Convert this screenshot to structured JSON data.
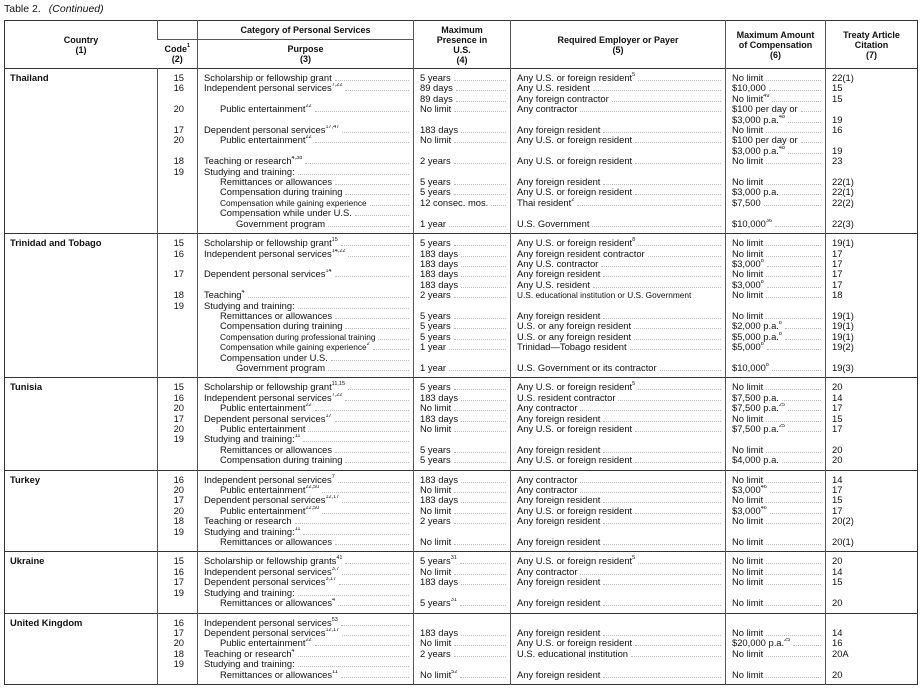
{
  "caption": {
    "label": "Table 2.",
    "note": "(Continued)"
  },
  "header": {
    "country": "Country",
    "country_num": "(1)",
    "category": "Category of Personal Services",
    "code": "Code",
    "code_sup": "1",
    "code_num": "(2)",
    "purpose": "Purpose",
    "purpose_num": "(3)",
    "presence": "Maximum Presence in U.S.",
    "presence_num": "(4)",
    "payer": "Required Employer or Payer",
    "payer_num": "(5)",
    "amount": "Maximum Amount of Compensation",
    "amount_num": "(6)",
    "article": "Treaty Article Citation",
    "article_num": "(7)"
  },
  "sections": [
    {
      "country": "Thailand",
      "lines": [
        {
          "code": "15",
          "purpose": "Scholarship or fellowship grant",
          "level": 0,
          "presence": "5 years",
          "payer": "Any U.S. or foreign resident",
          "payer_sup": "5",
          "amount": "No limit",
          "article": "22(1)"
        },
        {
          "code": "16",
          "purpose": "Independent personal services",
          "purpose_sup": "7,22",
          "level": 0,
          "presence": "89 days",
          "payer": "Any U.S. resident",
          "amount": "$10,000",
          "article": "15"
        },
        {
          "presence": "89 days",
          "payer": "Any foreign contractor",
          "amount": "No limit",
          "amount_sup": "49",
          "article": "15"
        },
        {
          "code": "20",
          "purpose": "Public entertainment",
          "purpose_sup": "22",
          "level": 1,
          "presence": "No limit",
          "payer": "Any contractor",
          "amount": "$100 per day or"
        },
        {
          "amount": "$3,000 p.a.",
          "amount_sup": "48",
          "article": "19"
        },
        {
          "code": "17",
          "purpose": "Dependent personal services",
          "purpose_sup": "17,47",
          "level": 0,
          "presence": "183 days",
          "payer": "Any foreign resident",
          "amount": "No limit",
          "article": "16"
        },
        {
          "code": "20",
          "purpose": "Public entertainment",
          "purpose_sup": "22",
          "level": 1,
          "presence": "No limit",
          "payer": "Any U.S. or foreign resident",
          "amount": "$100 per day or"
        },
        {
          "amount": "$3,000 p.a.",
          "amount_sup": "48",
          "article": "19"
        },
        {
          "code": "18",
          "purpose": "Teaching or research",
          "purpose_sup": "4,38",
          "level": 0,
          "presence": "2 years",
          "payer": "Any U.S. or foreign resident",
          "amount": "No limit",
          "article": "23"
        },
        {
          "code": "19",
          "purpose": "Studying and training:",
          "level": 0
        },
        {
          "purpose": "Remittances or allowances",
          "level": 1,
          "presence": "5 years",
          "payer": "Any foreign resident",
          "amount": "No limit",
          "article": "22(1)"
        },
        {
          "purpose": "Compensation during training",
          "level": 1,
          "presence": "5 years",
          "payer": "Any U.S. or foreign resident",
          "amount": "$3,000 p.a.",
          "article": "22(1)"
        },
        {
          "purpose": "Compensation while gaining experience",
          "level": 1,
          "small": true,
          "presence": "12 consec. mos.",
          "payer": "Thai resident",
          "payer_sup": "2",
          "amount": "$7,500",
          "article": "22(2)"
        },
        {
          "purpose": "Compensation while under U.S.",
          "level": 1
        },
        {
          "purpose": "Government program",
          "level": 2,
          "presence": "1 year",
          "payer": "U.S. Government",
          "amount": "$10,000",
          "amount_sup": "36",
          "article": "22(3)"
        }
      ]
    },
    {
      "country": "Trinidad and Tobago",
      "lines": [
        {
          "code": "15",
          "purpose": "Scholarship or fellowship grant",
          "purpose_sup": "15",
          "level": 0,
          "presence": "5 years",
          "payer": "Any U.S. or foreign resident",
          "payer_sup": "8",
          "amount": "No limit",
          "article": "19(1)"
        },
        {
          "code": "16",
          "purpose": "Independent personal services",
          "purpose_sup": "14,22",
          "level": 0,
          "presence": "183 days",
          "payer": "Any foreign resident contractor",
          "amount": "No limit",
          "article": "17"
        },
        {
          "presence": "183 days",
          "payer": "Any U.S. contractor",
          "amount": "$3,000",
          "amount_sup": "8",
          "article": "17"
        },
        {
          "code": "17",
          "purpose": "Dependent personal services",
          "purpose_sup": "14",
          "level": 0,
          "presence": "183 days",
          "payer": "Any foreign resident",
          "amount": "No limit",
          "article": "17"
        },
        {
          "presence": "183 days",
          "payer": "Any U.S. resident",
          "amount": "$3,000",
          "amount_sup": "8",
          "article": "17"
        },
        {
          "code": "18",
          "purpose": "Teaching",
          "purpose_sup": "4",
          "level": 0,
          "presence": "2 years",
          "payer": "U.S. educational institution or U.S. Government",
          "payer_small": true,
          "amount": "No limit",
          "article": "18"
        },
        {
          "code": "19",
          "purpose": "Studying and training:",
          "level": 0
        },
        {
          "purpose": "Remittances or allowances",
          "level": 1,
          "presence": "5 years",
          "payer": "Any foreign resident",
          "amount": "No limit",
          "article": "19(1)"
        },
        {
          "purpose": "Compensation during training",
          "level": 1,
          "presence": "5 years",
          "payer": "U.S. or any foreign resident",
          "amount": "$2,000 p.a.",
          "amount_sup": "8",
          "article": "19(1)"
        },
        {
          "purpose": "Compensation during professional training",
          "level": 1,
          "small": true,
          "presence": "5 years",
          "payer": "U.S. or any foreign resident",
          "amount": "$5,000 p.a.",
          "amount_sup": "8",
          "article": "19(1)"
        },
        {
          "purpose": "Compensation while gaining experience",
          "purpose_sup": "2",
          "level": 1,
          "small": true,
          "presence": "1 year",
          "payer": "Trinidad—Tobago resident",
          "amount": "$5,000",
          "amount_sup": "8",
          "article": "19(2)"
        },
        {
          "purpose": "Compensation under U.S.",
          "level": 1
        },
        {
          "purpose": "Government program",
          "level": 2,
          "presence": "1 year",
          "payer": "U.S. Government or its contractor",
          "amount": "$10,000",
          "amount_sup": "8",
          "article": "19(3)"
        }
      ]
    },
    {
      "country": "Tunisia",
      "lines": [
        {
          "code": "15",
          "purpose": "Scholarship or fellowship grant",
          "purpose_sup": "11,15",
          "level": 0,
          "presence": "5 years",
          "payer": "Any U.S. or foreign resident",
          "payer_sup": "5",
          "amount": "No limit",
          "article": "20"
        },
        {
          "code": "16",
          "purpose": "Independent personal services",
          "purpose_sup": "7,22",
          "level": 0,
          "presence": "183 days",
          "payer": "U.S. resident contractor",
          "amount": "$7,500 p.a.",
          "article": "14"
        },
        {
          "code": "20",
          "purpose": "Public entertainment",
          "purpose_sup": "22",
          "level": 1,
          "presence": "No limit",
          "payer": "Any contractor",
          "amount": "$7,500 p.a.",
          "amount_sup": "25",
          "article": "17"
        },
        {
          "code": "17",
          "purpose": "Dependent personal services",
          "purpose_sup": "17",
          "level": 0,
          "presence": "183 days",
          "payer": "Any foreign resident",
          "amount": "No limit",
          "article": "15"
        },
        {
          "code": "20",
          "purpose": "Public entertainment",
          "level": 1,
          "presence": "No limit",
          "payer": "Any U.S. or foreign resident",
          "amount": "$7,500 p.a.",
          "amount_sup": "25",
          "article": "17"
        },
        {
          "code": "19",
          "purpose": "Studying and training:",
          "purpose_sup": "11",
          "level": 0
        },
        {
          "purpose": "Remittances or allowances",
          "level": 1,
          "presence": "5 years",
          "payer": "Any foreign resident",
          "amount": "No limit",
          "article": "20"
        },
        {
          "purpose": "Compensation during training",
          "level": 1,
          "presence": "5 years",
          "payer": "Any U.S. or foreign resident",
          "amount": "$4,000 p.a.",
          "article": "20"
        }
      ]
    },
    {
      "country": "Turkey",
      "lines": [
        {
          "code": "16",
          "purpose": "Independent personal services",
          "purpose_sup": "7",
          "level": 0,
          "presence": "183 days",
          "payer": "Any contractor",
          "amount": "No limit",
          "article": "14"
        },
        {
          "code": "20",
          "purpose": "Public entertainment",
          "purpose_sup": "22,50",
          "level": 1,
          "presence": "No limit",
          "payer": "Any contractor",
          "amount": "$3,000",
          "amount_sup": "46",
          "article": "17"
        },
        {
          "code": "17",
          "purpose": "Dependent personal services",
          "purpose_sup": "12,17",
          "level": 0,
          "presence": "183 days",
          "payer": "Any foreign resident",
          "amount": "No limit",
          "article": "15"
        },
        {
          "code": "20",
          "purpose": "Public entertainment",
          "purpose_sup": "22,50",
          "level": 1,
          "presence": "No limit",
          "payer": "Any U.S. or foreign resident",
          "amount": "$3,000",
          "amount_sup": "46",
          "article": "17"
        },
        {
          "code": "18",
          "purpose": "Teaching or research",
          "level": 0,
          "presence": "2 years",
          "payer": "Any foreign resident",
          "amount": "No limit",
          "article": "20(2)"
        },
        {
          "code": "19",
          "purpose": "Studying and training:",
          "purpose_sup": "11",
          "level": 0
        },
        {
          "purpose": "Remittances or allowances",
          "level": 1,
          "presence": "No limit",
          "payer": "Any foreign resident",
          "amount": "No limit",
          "article": "20(1)"
        }
      ]
    },
    {
      "country": "Ukraine",
      "lines": [
        {
          "code": "15",
          "purpose": "Scholarship or fellowship grants",
          "purpose_sup": "41",
          "level": 0,
          "presence": "5 years",
          "presence_sup": "31",
          "payer": "Any U.S. or foreign resident",
          "payer_sup": "5",
          "amount": "No limit",
          "article": "20"
        },
        {
          "code": "16",
          "purpose": "Independent personal services",
          "purpose_sup": "3,7",
          "level": 0,
          "presence": "No limit",
          "payer": "Any contractor",
          "amount": "No limit",
          "article": "14"
        },
        {
          "code": "17",
          "purpose": "Dependent personal services",
          "purpose_sup": "3,17",
          "level": 0,
          "presence": "183 days",
          "payer": "Any foreign resident",
          "amount": "No limit",
          "article": "15"
        },
        {
          "code": "19",
          "purpose": "Studying and training:",
          "level": 0
        },
        {
          "purpose": "Remittances or allowances",
          "purpose_sup": "4",
          "level": 1,
          "presence": "5 years",
          "presence_sup": "31",
          "payer": "Any foreign resident",
          "amount": "No limit",
          "article": "20"
        }
      ]
    },
    {
      "country": "United Kingdom",
      "lines": [
        {
          "code": "16",
          "purpose": "Independent personal services",
          "purpose_sup": "53",
          "level": 0
        },
        {
          "code": "17",
          "purpose": "Dependent personal services",
          "purpose_sup": "12,17",
          "level": 0,
          "presence": "183 days",
          "payer": "Any foreign resident",
          "amount": "No limit",
          "article": "14"
        },
        {
          "code": "20",
          "purpose": "Public entertainment",
          "purpose_sup": "22",
          "level": 1,
          "presence": "No limit",
          "payer": "Any U.S. or foreign resident",
          "amount": "$20,000 p.a.",
          "amount_sup": "25",
          "article": "16"
        },
        {
          "code": "18",
          "purpose": "Teaching or research",
          "purpose_sup": "4",
          "level": 0,
          "presence": "2 years",
          "payer": "U.S. educational institution",
          "amount": "No limit",
          "article": "20A"
        },
        {
          "code": "19",
          "purpose": "Studying and training:",
          "level": 0
        },
        {
          "purpose": "Remittances or allowances",
          "purpose_sup": "11",
          "level": 1,
          "presence": "No limit",
          "presence_sup": "52",
          "payer": "Any foreign resident",
          "amount": "No limit",
          "article": "20"
        }
      ]
    }
  ]
}
